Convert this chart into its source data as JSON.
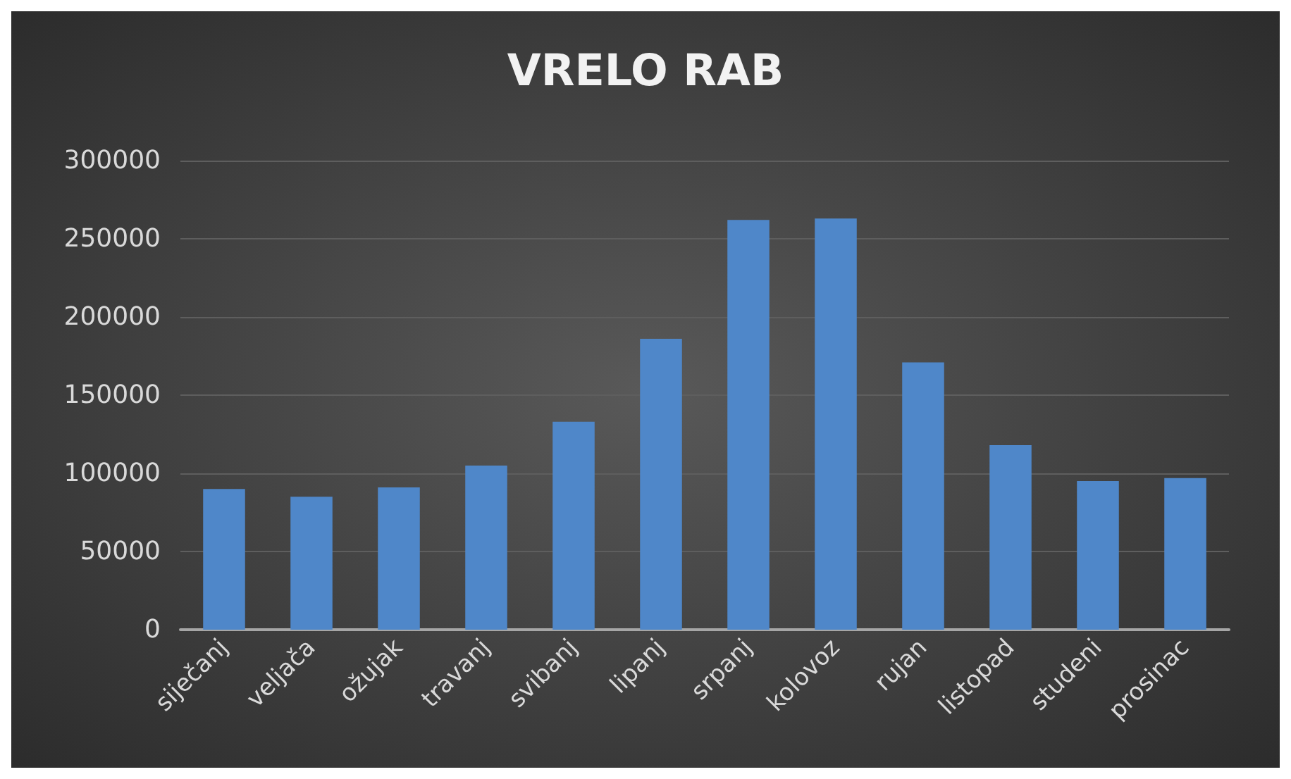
{
  "chart_data": {
    "type": "bar",
    "title": "VRELO RAB",
    "categories": [
      "siječanj",
      "veljača",
      "ožujak",
      "travanj",
      "svibanj",
      "lipanj",
      "srpanj",
      "kolovoz",
      "rujan",
      "listopad",
      "studeni",
      "prosinac"
    ],
    "values": [
      90000,
      85000,
      91000,
      105000,
      133000,
      186000,
      262000,
      263000,
      171000,
      118000,
      95000,
      97000
    ],
    "color": "#4f87c9",
    "ylim": [
      0,
      300000
    ],
    "yticks": [
      0,
      50000,
      100000,
      150000,
      200000,
      250000,
      300000
    ],
    "grid": "y"
  }
}
